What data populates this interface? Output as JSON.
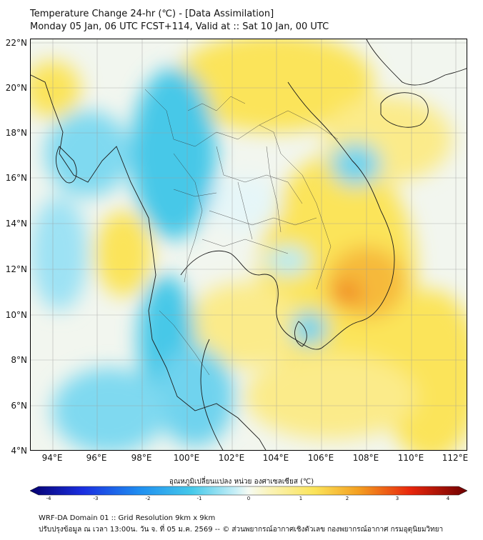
{
  "header": {
    "title_line1": "Temperature Change 24-hr (℃) - [Data Assimilation]",
    "title_line2": "Monday 05 Jan, 06 UTC FCST+114, Valid at :: Sat 10 Jan, 00 UTC"
  },
  "map": {
    "lat_labels": [
      "22°N",
      "20°N",
      "18°N",
      "16°N",
      "14°N",
      "12°N",
      "10°N",
      "8°N",
      "6°N",
      "4°N"
    ],
    "lon_labels": [
      "94°E",
      "96°E",
      "98°E",
      "100°E",
      "102°E",
      "104°E",
      "106°E",
      "108°E",
      "110°E",
      "112°E"
    ],
    "colors": {
      "cold": "#46c8e8",
      "neutral": "#f4f8f4",
      "warm": "#fbe45a",
      "hot": "#f0821e"
    }
  },
  "colorbar": {
    "title": "อุณหภูมิเปลี่ยนแปลง หน่วย องศาเซลเซียส (℃)",
    "tick_labels": [
      "-4",
      "-3",
      "-2",
      "-1",
      "0",
      "1",
      "2",
      "3",
      "4"
    ],
    "range": [
      -4,
      4
    ]
  },
  "footer": {
    "line1": "WRF-DA Domain 01 :: Grid Resolution 9km x 9km",
    "line2": "ปรับปรุงข้อมูล ณ เวลา 13:00น. วัน จ. ที่ 05 ม.ค. 2569 -- © ส่วนพยากรณ์อากาศเชิงตัวเลข กองพยากรณ์อากาศ กรมอุตุนิยมวิทยา"
  }
}
